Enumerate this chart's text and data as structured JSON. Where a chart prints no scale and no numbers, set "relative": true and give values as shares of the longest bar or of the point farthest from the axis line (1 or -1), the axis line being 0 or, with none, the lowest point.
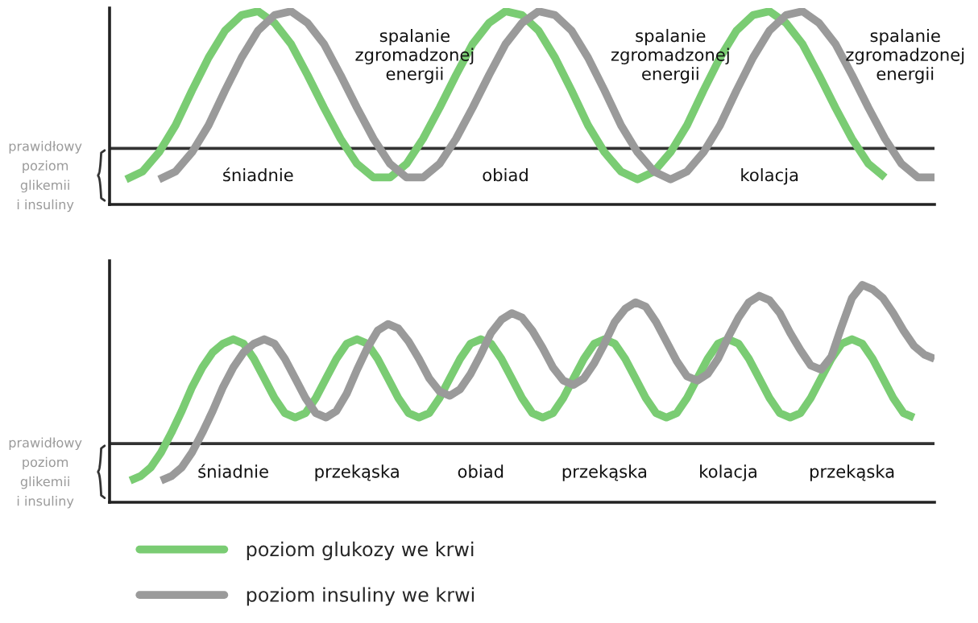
{
  "chart_data": [
    {
      "type": "line",
      "relative": true,
      "tick_labels": false,
      "marker": "none",
      "line_style": "solid",
      "categories": [
        null,
        null,
        null,
        null,
        null,
        null,
        null,
        null,
        null,
        null,
        null,
        null,
        null,
        null,
        null,
        null,
        null,
        null,
        null,
        null,
        null,
        null,
        null,
        null,
        null,
        null,
        null,
        null,
        null,
        null,
        null,
        null,
        null,
        null,
        null,
        null,
        null,
        null,
        null,
        null,
        null,
        null,
        null,
        null,
        null,
        null,
        null,
        null,
        null,
        null,
        null
      ],
      "series": [
        {
          "color": "#7acc73",
          "values": [
            null,
            0.13,
            0.17,
            0.27,
            0.41,
            0.59,
            0.76,
            0.9,
            0.98,
            1.0,
            0.94,
            0.83,
            0.67,
            0.5,
            0.34,
            0.21,
            0.14,
            0.14,
            0.21,
            0.34,
            0.5,
            0.67,
            0.83,
            0.94,
            1.0,
            0.98,
            0.9,
            0.76,
            0.59,
            0.41,
            0.27,
            0.17,
            0.13,
            0.17,
            0.27,
            0.41,
            0.59,
            0.76,
            0.9,
            0.98,
            1.0,
            0.94,
            0.83,
            0.67,
            0.5,
            0.34,
            0.21,
            0.14,
            null,
            null,
            null
          ]
        },
        {
          "color": "#9a9a9a",
          "values": [
            null,
            null,
            null,
            0.13,
            0.17,
            0.27,
            0.41,
            0.59,
            0.76,
            0.9,
            0.98,
            1.0,
            0.94,
            0.83,
            0.67,
            0.5,
            0.34,
            0.21,
            0.14,
            0.14,
            0.21,
            0.34,
            0.5,
            0.67,
            0.83,
            0.94,
            1.0,
            0.98,
            0.9,
            0.76,
            0.59,
            0.41,
            0.27,
            0.17,
            0.13,
            0.17,
            0.27,
            0.41,
            0.59,
            0.76,
            0.9,
            0.98,
            1.0,
            0.94,
            0.83,
            0.67,
            0.5,
            0.34,
            0.21,
            0.14,
            0.14
          ]
        }
      ],
      "ref_lines": [
        {
          "axis": "y",
          "value": 0.29,
          "label": "prawidłowy\npoziom\nglikemii\ni insuliny",
          "color": "#333333"
        }
      ],
      "annotations": [
        "śniadnie",
        "obiad",
        "kolacja",
        "spalanie\nzgromadzonej\nenergii",
        "spalanie\nzgromadzonej\nenergii",
        "spalanie\nzgromadzonej\nenergii"
      ]
    },
    {
      "type": "line",
      "relative": true,
      "tick_labels": false,
      "legend": "bottom",
      "marker": "none",
      "line_style": "solid",
      "categories": [
        null,
        null,
        null,
        null,
        null,
        null,
        null,
        null,
        null,
        null,
        null,
        null,
        null,
        null,
        null,
        null,
        null,
        null,
        null,
        null,
        null,
        null,
        null,
        null,
        null,
        null,
        null,
        null,
        null,
        null,
        null,
        null,
        null,
        null,
        null,
        null,
        null,
        null,
        null,
        null,
        null,
        null,
        null,
        null,
        null,
        null,
        null,
        null,
        null,
        null,
        null,
        null,
        null,
        null,
        null,
        null,
        null,
        null,
        null,
        null,
        null,
        null,
        null,
        null,
        null,
        null,
        null,
        null,
        null,
        null,
        null,
        null,
        null,
        null,
        null,
        null,
        null,
        null,
        null,
        null,
        null
      ],
      "series": [
        {
          "name": "poziom glukozy we krwi",
          "color": "#7acc73",
          "values": [
            null,
            null,
            0.1,
            0.12,
            0.16,
            0.23,
            0.32,
            0.42,
            0.53,
            0.62,
            0.69,
            0.73,
            0.75,
            0.73,
            0.66,
            0.57,
            0.48,
            0.41,
            0.39,
            0.41,
            0.48,
            0.57,
            0.66,
            0.73,
            0.75,
            0.73,
            0.66,
            0.57,
            0.48,
            0.41,
            0.39,
            0.41,
            0.48,
            0.57,
            0.66,
            0.73,
            0.75,
            0.73,
            0.66,
            0.57,
            0.48,
            0.41,
            0.39,
            0.41,
            0.48,
            0.57,
            0.66,
            0.73,
            0.75,
            0.73,
            0.66,
            0.57,
            0.48,
            0.41,
            0.39,
            0.41,
            0.48,
            0.57,
            0.66,
            0.73,
            0.75,
            0.73,
            0.66,
            0.57,
            0.48,
            0.41,
            0.39,
            0.41,
            0.48,
            0.57,
            0.66,
            0.73,
            0.75,
            0.73,
            0.66,
            0.57,
            0.48,
            0.41,
            0.39,
            null,
            null
          ]
        },
        {
          "name": "poziom insuliny we krwi",
          "color": "#9a9a9a",
          "values": [
            null,
            null,
            null,
            null,
            null,
            0.1,
            0.12,
            0.16,
            0.23,
            0.32,
            0.42,
            0.53,
            0.62,
            0.69,
            0.73,
            0.75,
            0.73,
            0.66,
            0.57,
            0.48,
            0.41,
            0.39,
            0.42,
            0.5,
            0.61,
            0.71,
            0.79,
            0.82,
            0.8,
            0.74,
            0.66,
            0.57,
            0.51,
            0.49,
            0.52,
            0.59,
            0.68,
            0.78,
            0.84,
            0.87,
            0.85,
            0.79,
            0.71,
            0.62,
            0.56,
            0.54,
            0.57,
            0.64,
            0.73,
            0.83,
            0.89,
            0.92,
            0.9,
            0.83,
            0.74,
            0.65,
            0.58,
            0.56,
            0.59,
            0.66,
            0.76,
            0.85,
            0.92,
            0.95,
            0.93,
            0.87,
            0.78,
            0.7,
            0.63,
            0.61,
            0.67,
            0.81,
            0.94,
            1.0,
            0.98,
            0.94,
            0.87,
            0.79,
            0.72,
            0.68,
            0.66
          ]
        }
      ],
      "ref_lines": [
        {
          "axis": "y",
          "value": 0.27,
          "label": "prawidłowy\npoziom\nglikemii\ni insuliny",
          "color": "#333333"
        }
      ],
      "annotations": [
        "śniadnie",
        "przekąska",
        "obiad",
        "przekąska",
        "kolacja",
        "przekąska"
      ]
    }
  ]
}
